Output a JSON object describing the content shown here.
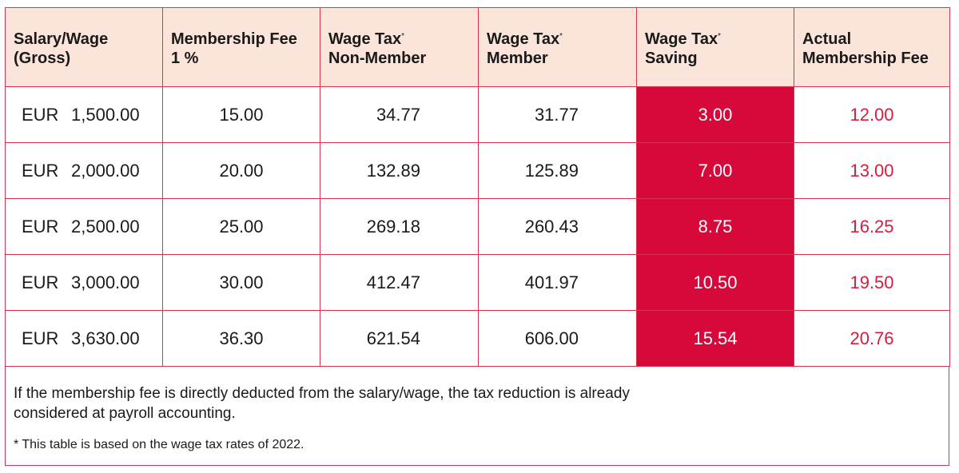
{
  "table": {
    "headers": [
      {
        "line1": "Salary/Wage",
        "sup": "",
        "line2": "(Gross)"
      },
      {
        "line1": "Membership Fee",
        "sup": "",
        "line2": "1 %"
      },
      {
        "line1": "Wage Tax",
        "sup": "*",
        "line2": "Non-Member"
      },
      {
        "line1": "Wage Tax",
        "sup": "*",
        "line2": "Member"
      },
      {
        "line1": "Wage Tax",
        "sup": "*",
        "line2": "Saving"
      },
      {
        "line1": "Actual",
        "sup": "",
        "line2": "Membership Fee"
      }
    ],
    "rows": [
      {
        "currency": "EUR",
        "salary": "1,500.00",
        "fee": "15.00",
        "non_member": "34.77",
        "member": "31.77",
        "saving": "3.00",
        "actual": "12.00"
      },
      {
        "currency": "EUR",
        "salary": "2,000.00",
        "fee": "20.00",
        "non_member": "132.89",
        "member": "125.89",
        "saving": "7.00",
        "actual": "13.00"
      },
      {
        "currency": "EUR",
        "salary": "2,500.00",
        "fee": "25.00",
        "non_member": "269.18",
        "member": "260.43",
        "saving": "8.75",
        "actual": "16.25"
      },
      {
        "currency": "EUR",
        "salary": "3,000.00",
        "fee": "30.00",
        "non_member": "412.47",
        "member": "401.97",
        "saving": "10.50",
        "actual": "19.50"
      },
      {
        "currency": "EUR",
        "salary": "3,630.00",
        "fee": "36.30",
        "non_member": "621.54",
        "member": "606.00",
        "saving": "15.54",
        "actual": "20.76"
      }
    ]
  },
  "footer": {
    "note": "If the membership fee is directly deducted from the salary/wage, the tax reduction is already considered at payroll accounting.",
    "footnote": "* This table is based on the wage tax rates of 2022."
  },
  "colors": {
    "border": "#d8334f",
    "header_bg": "#fbe4da",
    "saving_bg": "#d6093a",
    "actual_text": "#d3203f"
  }
}
